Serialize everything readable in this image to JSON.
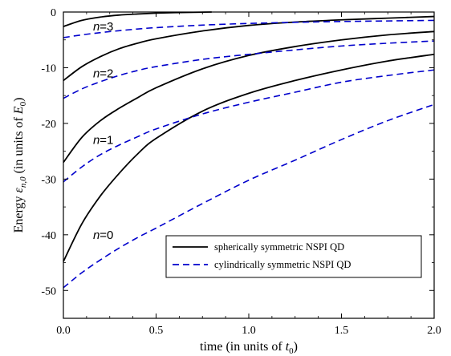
{
  "chart_data": {
    "type": "line",
    "xlabel": {
      "main": "time (in units of ",
      "sym": "t",
      "sub": "0",
      "close": ")"
    },
    "ylabel": {
      "main": "Energy ",
      "sym": "ε",
      "sub": "n,0",
      "mid": " (in units of ",
      "sym2": "E",
      "sub2": "0",
      "close": ")"
    },
    "xlim": [
      0.0,
      2.0
    ],
    "ylim": [
      -55,
      0
    ],
    "xticks": [
      0.0,
      0.5,
      1.0,
      1.5,
      2.0
    ],
    "xtick_labels": [
      "0.0",
      "0.5",
      "1.0",
      "1.5",
      "2.0"
    ],
    "yticks": [
      0,
      -10,
      -20,
      -30,
      -40,
      -50
    ],
    "ytick_labels": [
      "0",
      "-10",
      "-20",
      "-30",
      "-40",
      "-50"
    ],
    "grid": false,
    "legend_position": "lower-right",
    "legend": [
      {
        "label": "spherically symmetric NSPI QD",
        "style": "solid",
        "color": "#000000"
      },
      {
        "label": "cylindrically symmetric NSPI QD",
        "style": "dashed",
        "color": "#0000cc"
      }
    ],
    "annotations": [
      {
        "italic": "n",
        "rest": "=3",
        "x": 0.16,
        "y": -2.6
      },
      {
        "italic": "n",
        "rest": "=2",
        "x": 0.16,
        "y": -11.0
      },
      {
        "italic": "n",
        "rest": "=1",
        "x": 0.16,
        "y": -23.0
      },
      {
        "italic": "n",
        "rest": "=0",
        "x": 0.16,
        "y": -40.0
      }
    ],
    "series": [
      {
        "group": "spherically symmetric NSPI QD",
        "level": "n=3",
        "style": "solid",
        "color": "#000000",
        "x": [
          0.0,
          0.1,
          0.2,
          0.3,
          0.4,
          0.5,
          0.6,
          0.7,
          0.8
        ],
        "y": [
          -2.6,
          -1.5,
          -0.9,
          -0.55,
          -0.35,
          -0.2,
          -0.1,
          -0.05,
          0.0
        ]
      },
      {
        "group": "spherically symmetric NSPI QD",
        "level": "n=2",
        "style": "solid",
        "color": "#000000",
        "x": [
          0.0,
          0.1,
          0.2,
          0.3,
          0.4,
          0.5,
          0.75,
          1.0,
          1.25,
          1.5,
          1.75,
          2.0
        ],
        "y": [
          -12.3,
          -9.8,
          -8.0,
          -6.6,
          -5.6,
          -4.8,
          -3.4,
          -2.4,
          -1.8,
          -1.4,
          -1.1,
          -0.8
        ]
      },
      {
        "group": "spherically symmetric NSPI QD",
        "level": "n=1",
        "style": "solid",
        "color": "#000000",
        "x": [
          0.0,
          0.1,
          0.2,
          0.3,
          0.4,
          0.5,
          0.75,
          1.0,
          1.25,
          1.5,
          1.75,
          2.0
        ],
        "y": [
          -27.0,
          -22.5,
          -19.5,
          -17.3,
          -15.4,
          -13.6,
          -10.2,
          -7.8,
          -6.2,
          -5.0,
          -4.1,
          -3.5
        ]
      },
      {
        "group": "spherically symmetric NSPI QD",
        "level": "n=0",
        "style": "solid",
        "color": "#000000",
        "x": [
          0.0,
          0.1,
          0.2,
          0.3,
          0.4,
          0.5,
          0.75,
          1.0,
          1.25,
          1.5,
          1.75,
          2.0
        ],
        "y": [
          -44.8,
          -38.0,
          -33.0,
          -29.0,
          -25.5,
          -22.7,
          -17.8,
          -14.6,
          -12.3,
          -10.4,
          -8.8,
          -7.6
        ]
      },
      {
        "group": "cylindrically symmetric NSPI QD",
        "level": "n=3",
        "style": "dashed",
        "color": "#0000cc",
        "x": [
          0.0,
          0.1,
          0.2,
          0.3,
          0.4,
          0.5,
          0.75,
          1.0,
          1.25,
          1.5,
          1.75,
          2.0
        ],
        "y": [
          -4.6,
          -4.1,
          -3.7,
          -3.35,
          -3.05,
          -2.8,
          -2.35,
          -2.05,
          -1.85,
          -1.7,
          -1.6,
          -1.5
        ]
      },
      {
        "group": "cylindrically symmetric NSPI QD",
        "level": "n=2",
        "style": "dashed",
        "color": "#0000cc",
        "x": [
          0.0,
          0.1,
          0.2,
          0.3,
          0.4,
          0.5,
          0.75,
          1.0,
          1.25,
          1.5,
          1.75,
          2.0
        ],
        "y": [
          -15.5,
          -13.8,
          -12.5,
          -11.4,
          -10.5,
          -9.8,
          -8.5,
          -7.6,
          -6.8,
          -6.1,
          -5.6,
          -5.2
        ]
      },
      {
        "group": "cylindrically symmetric NSPI QD",
        "level": "n=1",
        "style": "dashed",
        "color": "#0000cc",
        "x": [
          0.0,
          0.1,
          0.2,
          0.3,
          0.4,
          0.5,
          0.75,
          1.0,
          1.25,
          1.5,
          1.75,
          2.0
        ],
        "y": [
          -30.5,
          -27.8,
          -25.6,
          -23.9,
          -22.4,
          -21.0,
          -18.3,
          -16.2,
          -14.4,
          -12.6,
          -11.4,
          -10.4
        ]
      },
      {
        "group": "cylindrically symmetric NSPI QD",
        "level": "n=0",
        "style": "dashed",
        "color": "#0000cc",
        "x": [
          0.0,
          0.1,
          0.2,
          0.3,
          0.4,
          0.5,
          0.75,
          1.0,
          1.25,
          1.5,
          1.75,
          2.0
        ],
        "y": [
          -49.5,
          -46.8,
          -44.5,
          -42.4,
          -40.5,
          -38.8,
          -34.4,
          -30.2,
          -26.6,
          -22.9,
          -19.5,
          -16.6
        ]
      }
    ]
  }
}
